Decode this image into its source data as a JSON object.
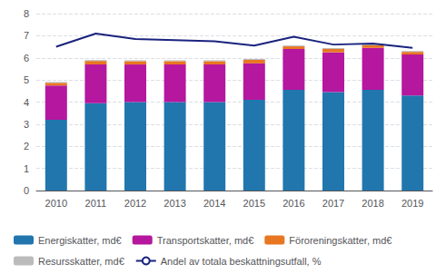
{
  "chart_data": {
    "type": "bar",
    "categories": [
      "2010",
      "2011",
      "2012",
      "2013",
      "2014",
      "2015",
      "2016",
      "2017",
      "2018",
      "2019"
    ],
    "series": [
      {
        "name": "Energiskatter, md€",
        "color": "#2176AE",
        "values": [
          3.2,
          3.95,
          4.0,
          4.0,
          4.0,
          4.1,
          4.55,
          4.45,
          4.55,
          4.3
        ]
      },
      {
        "name": "Transportskatter, md€",
        "color": "#B5179E",
        "values": [
          1.55,
          1.75,
          1.7,
          1.7,
          1.7,
          1.65,
          1.85,
          1.8,
          1.9,
          1.85
        ]
      },
      {
        "name": "Föroreningskatter, md€",
        "color": "#E87722",
        "values": [
          0.12,
          0.16,
          0.15,
          0.15,
          0.15,
          0.16,
          0.12,
          0.15,
          0.12,
          0.12
        ]
      },
      {
        "name": "Resursskatter, md€",
        "color": "#BBBBBB",
        "values": [
          0.04,
          0.04,
          0.04,
          0.04,
          0.04,
          0.04,
          0.04,
          0.04,
          0.04,
          0.04
        ]
      },
      {
        "name": "Andel av totala beskattningsutfall, %",
        "type": "line",
        "color": "#1a237e",
        "values": [
          6.5,
          7.1,
          6.85,
          6.8,
          6.75,
          6.55,
          6.95,
          6.6,
          6.65,
          6.45
        ]
      }
    ],
    "stacked": true,
    "ylim": [
      0,
      8
    ],
    "yticks": [
      0,
      1,
      2,
      3,
      4,
      5,
      6,
      7,
      8
    ],
    "grid": true,
    "legend": "bottom"
  }
}
